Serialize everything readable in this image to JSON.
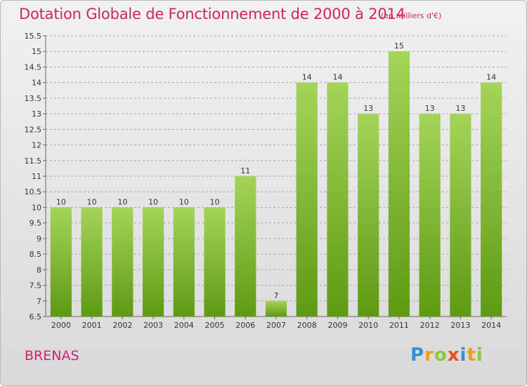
{
  "header": {
    "title": "Dotation Globale de Fonctionnement de 2000 à 2014",
    "unit": "(en milliers d'€)"
  },
  "footer": {
    "commune": "BRENAS",
    "logo_text": "Proxiti"
  },
  "colors": {
    "title": "#d2216b",
    "bar_top": "#a4d45a",
    "bar_bottom": "#5e9a12",
    "grid": "#a8a8a8"
  },
  "chart_data": {
    "type": "bar",
    "categories": [
      "2000",
      "2001",
      "2002",
      "2003",
      "2004",
      "2005",
      "2006",
      "2007",
      "2008",
      "2009",
      "2010",
      "2011",
      "2012",
      "2013",
      "2014"
    ],
    "values": [
      10,
      10,
      10,
      10,
      10,
      10,
      11,
      7,
      14,
      14,
      13,
      15,
      13,
      13,
      14
    ],
    "data_labels": [
      "10",
      "10",
      "10",
      "10",
      "10",
      "10",
      "11",
      "7",
      "14",
      "14",
      "13",
      "15",
      "13",
      "13",
      "14"
    ],
    "ylim": [
      6.5,
      15.5
    ],
    "yticks": [
      6.5,
      7,
      7.5,
      8,
      8.5,
      9,
      9.5,
      10,
      10.5,
      11,
      11.5,
      12,
      12.5,
      13,
      13.5,
      14,
      14.5,
      15,
      15.5
    ],
    "ytick_labels": [
      "6.5",
      "7",
      "7.5",
      "8",
      "8.5",
      "9",
      "9.5",
      "10",
      "10.5",
      "11",
      "11.5",
      "12",
      "12.5",
      "13",
      "13.5",
      "14",
      "14.5",
      "15",
      "15.5"
    ],
    "grid": "horizontal dashed",
    "legend": "none"
  }
}
